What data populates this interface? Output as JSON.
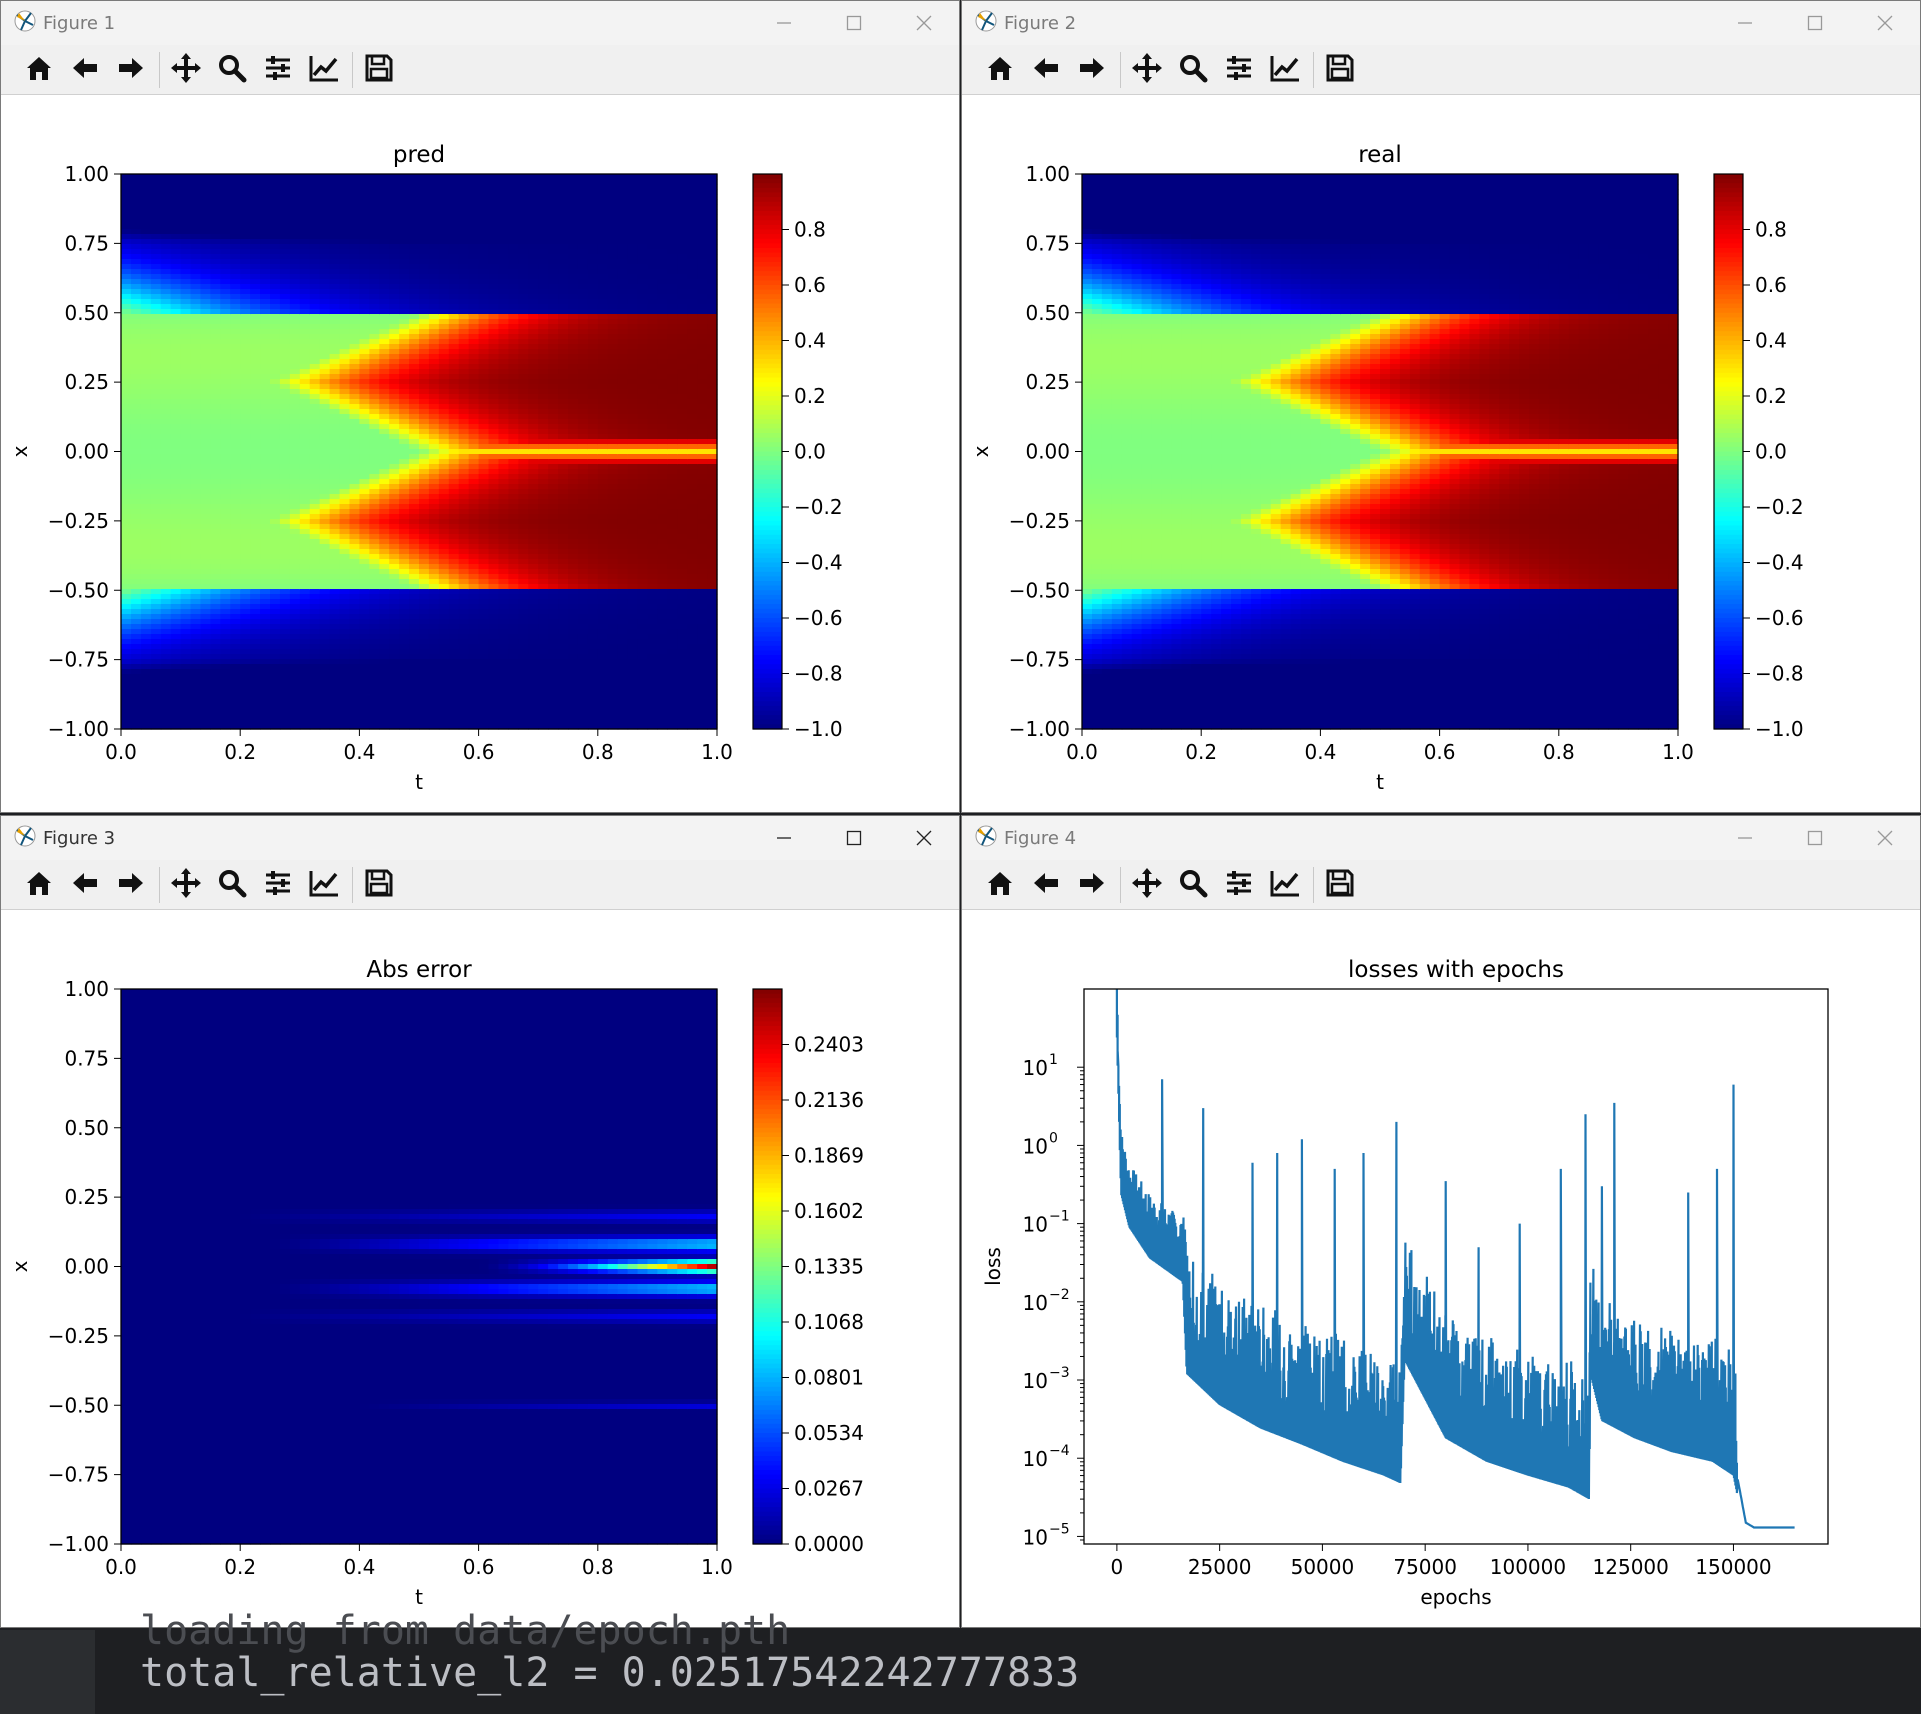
{
  "windows": [
    {
      "title": "Figure 1",
      "plot_title": "pred",
      "xlabel": "t",
      "ylabel": "x",
      "active": false
    },
    {
      "title": "Figure 2",
      "plot_title": "real",
      "xlabel": "t",
      "ylabel": "x",
      "active": false
    },
    {
      "title": "Figure 3",
      "plot_title": "Abs error",
      "xlabel": "t",
      "ylabel": "x",
      "active": true
    },
    {
      "title": "Figure 4",
      "plot_title": "losses with epochs",
      "xlabel": "epochs",
      "ylabel": "loss",
      "active": false
    }
  ],
  "toolbar_icons": [
    "home-icon",
    "back-icon",
    "forward-icon",
    "pan-icon",
    "zoom-icon",
    "configure-subplots-icon",
    "edit-axis-icon",
    "save-icon"
  ],
  "axes": {
    "t_ticks": [
      "0.0",
      "0.2",
      "0.4",
      "0.6",
      "0.8",
      "1.0"
    ],
    "x_ticks": [
      "1.00",
      "0.75",
      "0.50",
      "0.25",
      "0.00",
      "−0.25",
      "−0.50",
      "−0.75",
      "−1.00"
    ],
    "colorbar_ticks": [
      "0.8",
      "0.6",
      "0.4",
      "0.2",
      "0.0",
      "−0.2",
      "−0.4",
      "−0.6",
      "−0.8",
      "−1.0"
    ],
    "error_colorbar_ticks": [
      "0.2403",
      "0.2136",
      "0.1869",
      "0.1602",
      "0.1335",
      "0.1068",
      "0.0801",
      "0.0534",
      "0.0267",
      "0.0000"
    ],
    "loss_x_ticks": [
      "0",
      "25000",
      "50000",
      "75000",
      "100000",
      "125000",
      "150000"
    ],
    "loss_y_ticks": [
      "10",
      "10",
      "10",
      "10",
      "10",
      "10",
      "10"
    ],
    "loss_y_exponents": [
      "1",
      "0",
      "−1",
      "−2",
      "−3",
      "−4",
      "−5"
    ]
  },
  "chart_data": [
    {
      "type": "heatmap",
      "title": "pred",
      "xlabel": "t",
      "ylabel": "x",
      "xlim": [
        0,
        1
      ],
      "ylim": [
        -1,
        1
      ],
      "colorbar_range": [
        -1,
        1
      ],
      "colormap": "jet"
    },
    {
      "type": "heatmap",
      "title": "real",
      "xlabel": "t",
      "ylabel": "x",
      "xlim": [
        0,
        1
      ],
      "ylim": [
        -1,
        1
      ],
      "colorbar_range": [
        -1,
        1
      ],
      "colormap": "jet"
    },
    {
      "type": "heatmap",
      "title": "Abs error",
      "xlabel": "t",
      "ylabel": "x",
      "xlim": [
        0,
        1
      ],
      "ylim": [
        -1,
        1
      ],
      "colorbar_range": [
        0,
        0.267
      ],
      "colormap": "jet"
    },
    {
      "type": "line",
      "title": "losses with epochs",
      "xlabel": "epochs",
      "ylabel": "loss",
      "yscale": "log",
      "xlim": [
        -8000,
        173000
      ],
      "ylim": [
        8e-06,
        100
      ],
      "series": [
        {
          "color": "#1f77b4",
          "x": [
            0,
            1000,
            3000,
            8000,
            16000,
            17000,
            25000,
            35000,
            45000,
            55000,
            65000,
            69000,
            70000,
            80000,
            90000,
            100000,
            110000,
            114900,
            115200,
            118000,
            126000,
            135000,
            145000,
            150000,
            151500,
            153000,
            155000,
            165000
          ],
          "y": [
            40,
            0.4,
            0.15,
            0.06,
            0.03,
            0.002,
            0.0008,
            0.0004,
            0.00025,
            0.00015,
            0.0001,
            8e-05,
            0.003,
            0.0003,
            0.00015,
            0.0001,
            7e-05,
            5e-05,
            0.002,
            0.0005,
            0.0003,
            0.0002,
            0.00015,
            0.0001,
            4e-05,
            1.5e-05,
            1.3e-05,
            1.3e-05
          ]
        }
      ],
      "spikes": [
        [
          0,
          40
        ],
        [
          11000,
          7
        ],
        [
          21000,
          3
        ],
        [
          33000,
          0.6
        ],
        [
          39000,
          0.8
        ],
        [
          45000,
          1.2
        ],
        [
          53000,
          0.5
        ],
        [
          60000,
          0.8
        ],
        [
          68000,
          2
        ],
        [
          80000,
          0.35
        ],
        [
          88000,
          0.05
        ],
        [
          98000,
          0.1
        ],
        [
          108000,
          0.5
        ],
        [
          114000,
          2.5
        ],
        [
          118000,
          0.3
        ],
        [
          121000,
          3.5
        ],
        [
          139000,
          0.25
        ],
        [
          146000,
          0.5
        ],
        [
          150000,
          6
        ]
      ]
    }
  ],
  "console": {
    "ghost_line": "loading from data/epoch.pth",
    "line": "total_relative_l2 = 0.02517542242777833"
  }
}
